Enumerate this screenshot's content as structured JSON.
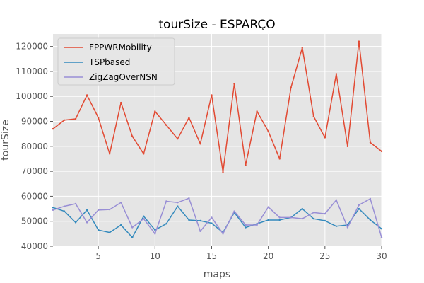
{
  "chart_data": {
    "type": "line",
    "title": "tourSize - ESPARÇO",
    "xlabel": "maps",
    "ylabel": "tourSize",
    "xlim": [
      1,
      30
    ],
    "ylim": [
      40000,
      125000
    ],
    "xticks": [
      5,
      10,
      15,
      20,
      25,
      30
    ],
    "yticks": [
      40000,
      50000,
      60000,
      70000,
      80000,
      90000,
      100000,
      110000,
      120000
    ],
    "grid": true,
    "legend": "top-left",
    "x": [
      1,
      2,
      3,
      4,
      5,
      6,
      7,
      8,
      9,
      10,
      11,
      12,
      13,
      14,
      15,
      16,
      17,
      18,
      19,
      20,
      21,
      22,
      23,
      24,
      25,
      26,
      27,
      28,
      29,
      30
    ],
    "series": [
      {
        "name": "FPPWRMobility",
        "color": "#e24a33",
        "values": [
          87000,
          90500,
          91000,
          100500,
          91500,
          77000,
          97500,
          84000,
          77000,
          94000,
          88500,
          83000,
          91500,
          81000,
          100500,
          69700,
          105000,
          72500,
          94000,
          86000,
          75000,
          103500,
          119500,
          92000,
          83500,
          109000,
          80000,
          122000,
          81500,
          78000
        ]
      },
      {
        "name": "TSPbased",
        "color": "#348abd",
        "values": [
          55500,
          54000,
          49500,
          54500,
          46500,
          45500,
          48500,
          43500,
          52000,
          46500,
          49000,
          56000,
          50500,
          50200,
          49200,
          45500,
          53500,
          47500,
          49000,
          50500,
          50500,
          51500,
          55000,
          51000,
          50200,
          48000,
          48500,
          55000,
          50500,
          47000
        ]
      },
      {
        "name": "ZigZagOverNSN",
        "color": "#988ed5",
        "values": [
          54500,
          56000,
          57000,
          49500,
          54500,
          54700,
          57500,
          47500,
          51000,
          45000,
          58000,
          57500,
          59200,
          46000,
          51500,
          45000,
          54000,
          48500,
          48500,
          55700,
          51500,
          51500,
          51000,
          53500,
          53000,
          58500,
          47500,
          56500,
          59000,
          43500
        ]
      }
    ]
  }
}
